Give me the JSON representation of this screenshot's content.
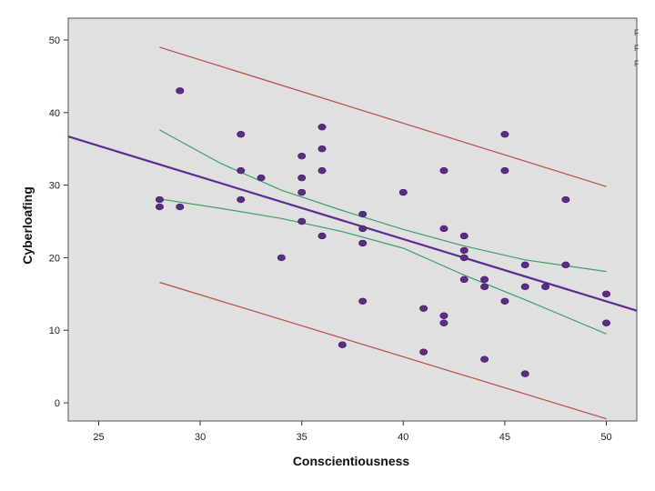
{
  "chart_data": {
    "type": "scatter",
    "xlabel": "Conscientiousness",
    "ylabel": "Cyberloafing",
    "xlim": [
      23.5,
      51.5
    ],
    "ylim": [
      -2.5,
      53
    ],
    "xticks": [
      25,
      30,
      35,
      40,
      45,
      50
    ],
    "yticks": [
      0,
      10,
      20,
      30,
      40,
      50
    ],
    "grid": false,
    "colors": {
      "plot_background": "#e0e0e0",
      "points": "#5b2d82",
      "fit_line": "#5c2d91",
      "confidence_band": "#3aa06a",
      "prediction_band": "#b94a4a"
    },
    "points": [
      {
        "x": 28,
        "y": 28
      },
      {
        "x": 28,
        "y": 27
      },
      {
        "x": 29,
        "y": 43
      },
      {
        "x": 29,
        "y": 27
      },
      {
        "x": 32,
        "y": 37
      },
      {
        "x": 32,
        "y": 32
      },
      {
        "x": 32,
        "y": 28
      },
      {
        "x": 33,
        "y": 31
      },
      {
        "x": 34,
        "y": 20
      },
      {
        "x": 35,
        "y": 34
      },
      {
        "x": 35,
        "y": 31
      },
      {
        "x": 35,
        "y": 29
      },
      {
        "x": 35,
        "y": 25
      },
      {
        "x": 36,
        "y": 38
      },
      {
        "x": 36,
        "y": 35
      },
      {
        "x": 36,
        "y": 32
      },
      {
        "x": 36,
        "y": 23
      },
      {
        "x": 37,
        "y": 8
      },
      {
        "x": 38,
        "y": 26
      },
      {
        "x": 38,
        "y": 24
      },
      {
        "x": 38,
        "y": 22
      },
      {
        "x": 38,
        "y": 14
      },
      {
        "x": 40,
        "y": 29
      },
      {
        "x": 41,
        "y": 13
      },
      {
        "x": 41,
        "y": 7
      },
      {
        "x": 42,
        "y": 32
      },
      {
        "x": 42,
        "y": 24
      },
      {
        "x": 42,
        "y": 12
      },
      {
        "x": 42,
        "y": 11
      },
      {
        "x": 43,
        "y": 23
      },
      {
        "x": 43,
        "y": 21
      },
      {
        "x": 43,
        "y": 20
      },
      {
        "x": 43,
        "y": 17
      },
      {
        "x": 44,
        "y": 17
      },
      {
        "x": 44,
        "y": 16
      },
      {
        "x": 44,
        "y": 6
      },
      {
        "x": 45,
        "y": 37
      },
      {
        "x": 45,
        "y": 32
      },
      {
        "x": 45,
        "y": 14
      },
      {
        "x": 46,
        "y": 19
      },
      {
        "x": 46,
        "y": 16
      },
      {
        "x": 46,
        "y": 4
      },
      {
        "x": 47,
        "y": 16
      },
      {
        "x": 48,
        "y": 28
      },
      {
        "x": 48,
        "y": 19
      },
      {
        "x": 50,
        "y": 15
      },
      {
        "x": 50,
        "y": 11
      }
    ],
    "fit_line": {
      "x": [
        23.5,
        51.5
      ],
      "y": [
        36.7,
        12.7
      ]
    },
    "confidence_band": {
      "x": [
        28,
        31,
        34,
        37,
        40,
        43,
        46,
        50
      ],
      "upper": [
        37.6,
        33.0,
        29.3,
        26.5,
        23.9,
        21.6,
        19.7,
        18.1
      ],
      "lower": [
        28.1,
        26.8,
        25.4,
        23.6,
        21.3,
        17.6,
        14.2,
        9.5
      ]
    },
    "prediction_band": {
      "x": [
        28,
        50
      ],
      "upper": [
        49.0,
        29.8
      ],
      "lower": [
        16.6,
        -2.2
      ]
    },
    "legend": {
      "placement": "top-right",
      "entries": [
        "F",
        "F",
        "F"
      ]
    }
  }
}
